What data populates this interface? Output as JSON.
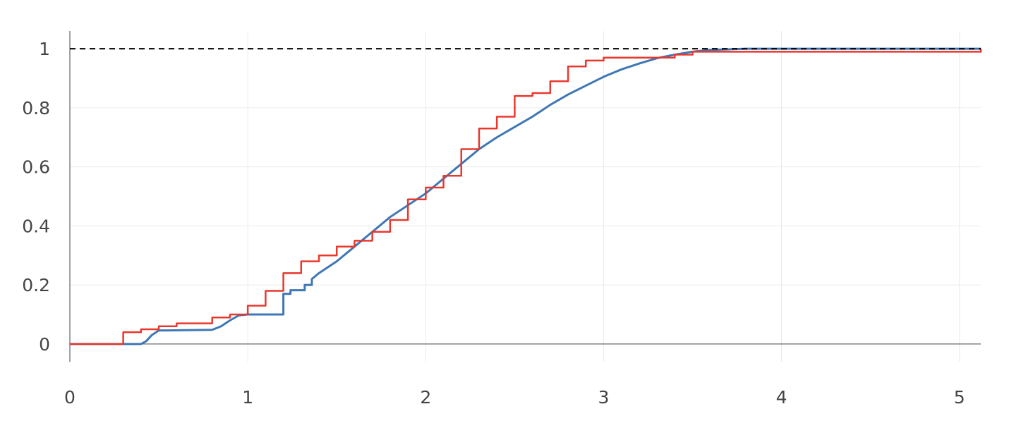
{
  "colors": {
    "model": "#3f77b4",
    "empirical": "#e8382d",
    "reference": "#000000",
    "grid": "#ebebeb",
    "axis": "#444444"
  },
  "chart_data": {
    "type": "line",
    "title": "",
    "xlabel": "",
    "ylabel": "",
    "xlim": [
      0,
      5.12
    ],
    "ylim": [
      -0.06,
      1.06
    ],
    "grid": true,
    "x_ticks": [
      0,
      1,
      2,
      3,
      4,
      5
    ],
    "x_tick_labels": [
      "0",
      "1",
      "2",
      "3",
      "4",
      "5"
    ],
    "y_ticks": [
      0,
      0.2,
      0.4,
      0.6,
      0.8,
      1
    ],
    "y_tick_labels": [
      "0",
      "0.2",
      "0.4",
      "0.6",
      "0.8",
      "1"
    ],
    "reference_line": {
      "y": 1,
      "style": "dashed"
    },
    "series": [
      {
        "kind": "line",
        "color": "#3f77b4",
        "x": [
          0,
          0.4,
          0.43,
          0.46,
          0.5,
          0.55,
          0.8,
          0.85,
          0.9,
          0.95,
          1.0,
          1.2,
          1.2,
          1.24,
          1.24,
          1.32,
          1.32,
          1.36,
          1.36,
          1.4,
          1.5,
          1.6,
          1.7,
          1.8,
          1.9,
          2.0,
          2.1,
          2.2,
          2.3,
          2.4,
          2.5,
          2.6,
          2.7,
          2.8,
          2.9,
          3.0,
          3.1,
          3.2,
          3.3,
          3.4,
          3.5,
          3.6,
          3.7,
          3.8,
          3.9,
          4.0,
          5.12
        ],
        "y": [
          0,
          0,
          0.01,
          0.03,
          0.046,
          0.046,
          0.048,
          0.06,
          0.08,
          0.097,
          0.1,
          0.1,
          0.17,
          0.17,
          0.182,
          0.182,
          0.2,
          0.2,
          0.22,
          0.24,
          0.28,
          0.33,
          0.38,
          0.43,
          0.47,
          0.51,
          0.56,
          0.61,
          0.66,
          0.7,
          0.735,
          0.77,
          0.81,
          0.845,
          0.875,
          0.905,
          0.93,
          0.95,
          0.968,
          0.98,
          0.99,
          0.996,
          0.998,
          1.0,
          1.0,
          1.0,
          1.0
        ]
      },
      {
        "kind": "step",
        "color": "#e8382d",
        "x": [
          0,
          0.3,
          0.4,
          0.5,
          0.6,
          0.8,
          0.9,
          1.0,
          1.1,
          1.2,
          1.3,
          1.4,
          1.5,
          1.6,
          1.7,
          1.8,
          1.9,
          2.0,
          2.1,
          2.2,
          2.3,
          2.4,
          2.5,
          2.6,
          2.7,
          2.8,
          2.9,
          3.0,
          3.4,
          3.5,
          5.12
        ],
        "y": [
          0,
          0.04,
          0.05,
          0.06,
          0.07,
          0.09,
          0.1,
          0.13,
          0.18,
          0.24,
          0.28,
          0.3,
          0.33,
          0.35,
          0.38,
          0.42,
          0.49,
          0.53,
          0.57,
          0.66,
          0.73,
          0.77,
          0.84,
          0.85,
          0.89,
          0.94,
          0.96,
          0.97,
          0.98,
          0.99,
          1.0
        ]
      }
    ]
  }
}
